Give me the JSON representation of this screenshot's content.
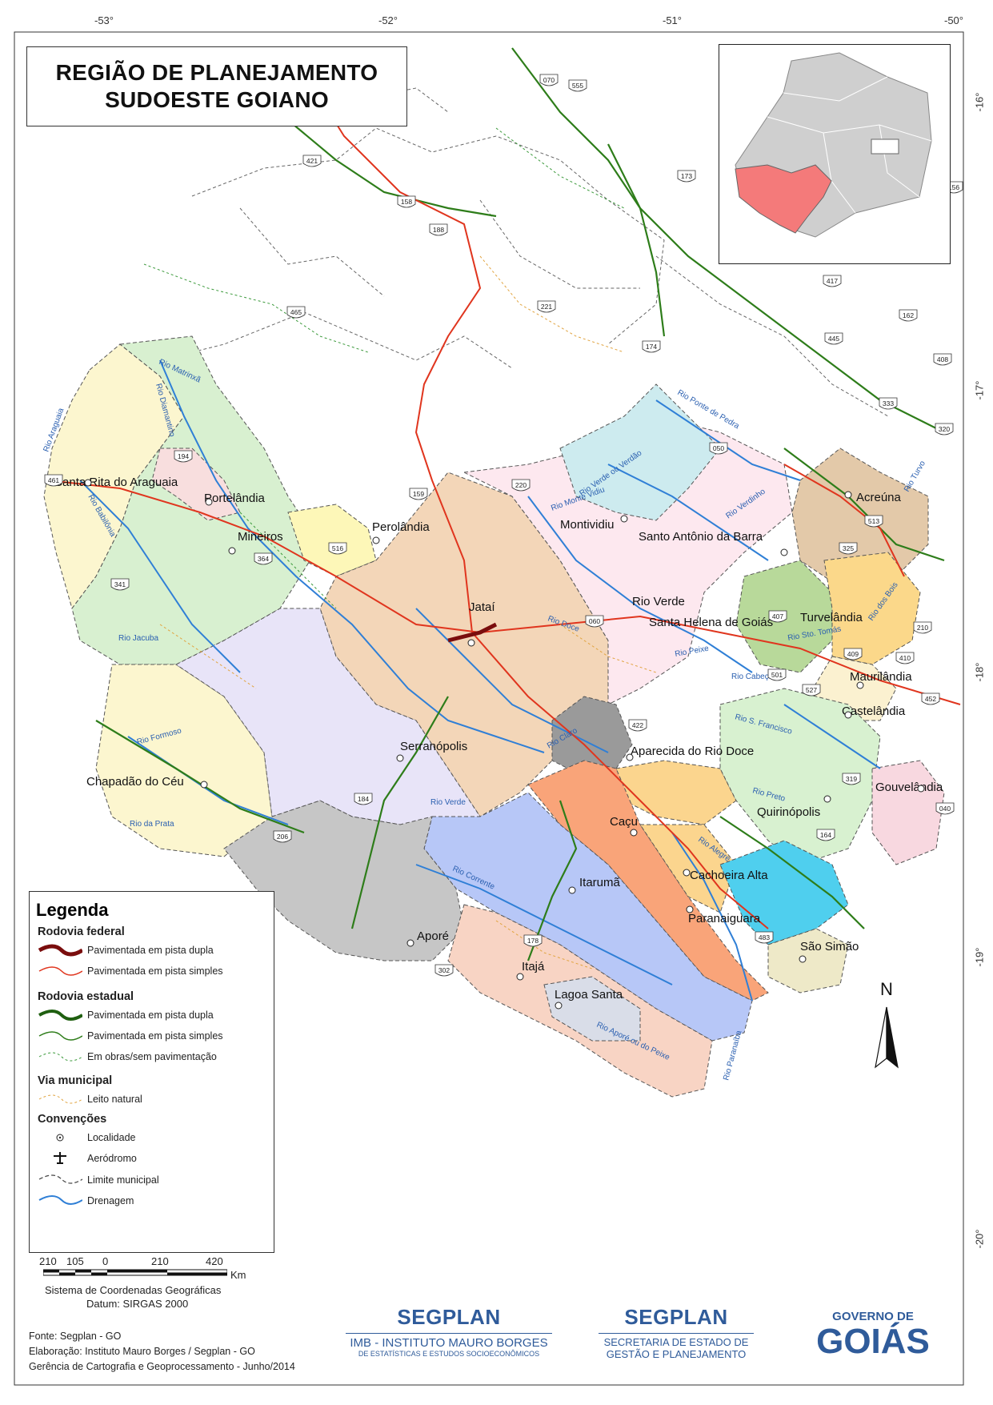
{
  "title": {
    "line1": "REGIÃO DE PLANEJAMENTO",
    "line2": "SUDOESTE GOIANO"
  },
  "coords": {
    "top": [
      "-53°",
      "-52°",
      "-51°",
      "-50°"
    ],
    "right": [
      "-16°",
      "-17°",
      "-18°",
      "-19°",
      "-20°"
    ]
  },
  "places": [
    "Santa Rita do Araguaia",
    "Portelândia",
    "Mineiros",
    "Perolândia",
    "Jataí",
    "Montividiu",
    "Santo Antônio da Barra",
    "Acreúna",
    "Rio Verde",
    "Santa Helena de Goiás",
    "Turvelândia",
    "Maurilândia",
    "Castelândia",
    "Aparecida do Rio Doce",
    "Serranópolis",
    "Chapadão do Céu",
    "Caçu",
    "Quirinópolis",
    "Gouvelândia",
    "Itarumã",
    "Cachoeira Alta",
    "Paranaiguara",
    "São Simão",
    "Aporé",
    "Itajá",
    "Lagoa Santa"
  ],
  "rivers": [
    "Rio Matrinxã",
    "Rio Diamantino",
    "Rio Araguaia",
    "Rio Babilônia",
    "Rio Jacuba",
    "Rio Formoso",
    "Rio da Prata",
    "Rio Verde",
    "Rio Claro",
    "Rio Doce",
    "Rio Corrente",
    "Rio Verde ou Verdão",
    "Rio Monte Vidiu",
    "Rio Ponte de Pedra",
    "Rio Verdinho",
    "Rio dos Bois",
    "Rio Sto. Tomás",
    "Rio Peixe",
    "Rio Cabeça",
    "Rio S. Francisco",
    "Rio Preto",
    "Rio Alegre",
    "Rio Paranaíba",
    "Rio Aporé ou do Peixe",
    "Rio Turvo"
  ],
  "highways": [
    "070",
    "555",
    "421",
    "158",
    "188",
    "173",
    "156",
    "465",
    "221",
    "174",
    "417",
    "162",
    "445",
    "408",
    "333",
    "320",
    "194",
    "461",
    "050",
    "220",
    "159",
    "516",
    "364",
    "341",
    "060",
    "513",
    "325",
    "407",
    "409",
    "210",
    "410",
    "501",
    "527",
    "452",
    "422",
    "319",
    "040",
    "184",
    "206",
    "164",
    "483",
    "178",
    "302"
  ],
  "legend": {
    "heading": "Legenda",
    "sections": {
      "federal": "Rodovia federal",
      "estadual": "Rodovia estadual",
      "municipal": "Via municipal",
      "convencoes": "Convenções"
    },
    "items": {
      "fed_dupla": "Pavimentada em pista dupla",
      "fed_simples": "Pavimentada em pista simples",
      "est_dupla": "Pavimentada em pista dupla",
      "est_simples": "Pavimentada em pista simples",
      "est_obras": "Em obras/sem pavimentação",
      "leito": "Leito natural",
      "localidade": "Localidade",
      "aerodromo": "Aeródromo",
      "limite": "Limite municipal",
      "drenagem": "Drenagem"
    }
  },
  "scale": {
    "labels": [
      "210",
      "105",
      "0",
      "210",
      "420"
    ],
    "unit": "Km",
    "system": "Sistema de Coordenadas Geográficas",
    "datum": "Datum: SIRGAS 2000"
  },
  "north": "N",
  "credits": {
    "fonte": "Fonte: Segplan - GO",
    "elaboracao": "Elaboração: Instituto Mauro Borges / Segplan - GO",
    "gerencia": "Gerência de Cartografia e Geoprocessamento - Junho/2014"
  },
  "logos": {
    "imb_top": "SEGPLAN",
    "imb_line1": "IMB - INSTITUTO MAURO BORGES",
    "imb_line2": "DE ESTATÍSTICAS E ESTUDOS SOCIOECONÔMICOS",
    "seg_top": "SEGPLAN",
    "seg_line1": "SECRETARIA DE ESTADO DE",
    "seg_line2": "GESTÃO E PLANEJAMENTO",
    "gov_line1": "GOVERNO DE",
    "gov_line2": "GOIÁS"
  },
  "colors": {
    "federal_road": "#e0351e",
    "state_road": "#2e7d1a",
    "river": "#2f7fd6",
    "highlight_region": "#f47a7a",
    "inset_region": "#cfcfcf",
    "logo_blue": "#2f5b9a"
  }
}
